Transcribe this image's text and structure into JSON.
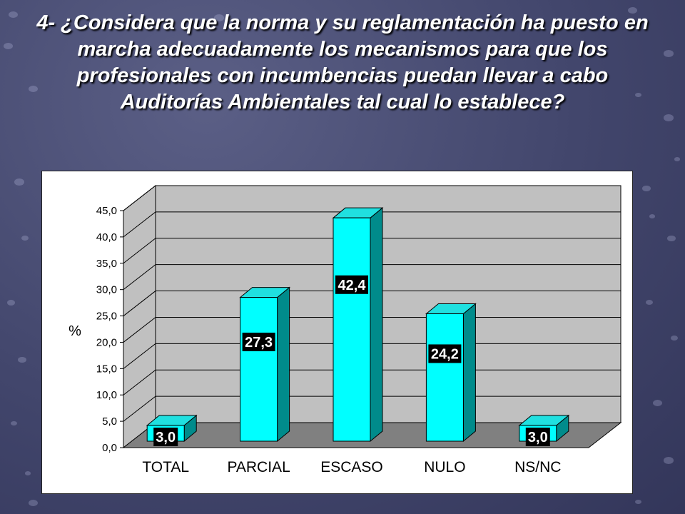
{
  "slide": {
    "title": "4- ¿Considera que la norma y su reglamentación ha puesto en marcha adecuadamente los mecanismos para que los profesionales con incumbencias puedan llevar a cabo Auditorías Ambientales tal cual lo establece?"
  },
  "colors": {
    "background": "#42466c",
    "bar_front": "#00ffff",
    "bar_side": "#008b8b",
    "bar_top": "#20e0e0",
    "wall": "#c0c0c0",
    "floor": "#808080",
    "label_bg": "#000000"
  },
  "chart_data": {
    "type": "bar",
    "style": "3d-column",
    "categories": [
      "TOTAL",
      "PARCIAL",
      "ESCASO",
      "NULO",
      "NS/NC"
    ],
    "values": [
      3.0,
      27.3,
      42.4,
      24.2,
      3.0
    ],
    "value_labels": [
      "3,0",
      "27,3",
      "42,4",
      "24,2",
      "3,0"
    ],
    "ylabel": "%",
    "ylim": [
      0,
      45
    ],
    "yticks": [
      "0,0",
      "5,0",
      "10,0",
      "15,0",
      "20,0",
      "25,0",
      "30,0",
      "35,0",
      "40,0",
      "45,0"
    ],
    "grid": true,
    "legend": "none"
  }
}
